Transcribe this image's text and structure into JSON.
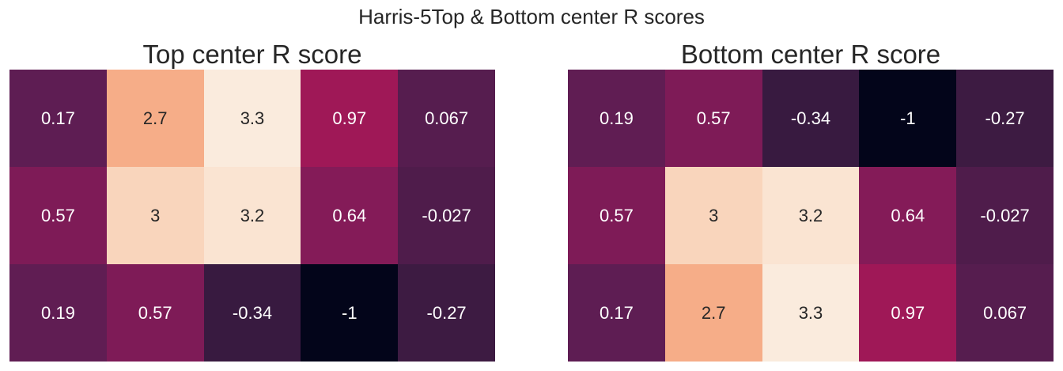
{
  "figure": {
    "suptitle": "Harris-5Top & Bottom center R scores"
  },
  "chart_data": [
    {
      "type": "heatmap",
      "title": "Top center R score",
      "vmin": -1,
      "vmax": 3.3,
      "colormap": "rocket",
      "colorbar": false,
      "values": [
        [
          0.17,
          2.7,
          3.3,
          0.97,
          0.067
        ],
        [
          0.57,
          3,
          3.2,
          0.64,
          -0.027
        ],
        [
          0.19,
          0.57,
          -0.34,
          -1,
          -0.27
        ]
      ],
      "labels": [
        [
          "0.17",
          "2.7",
          "3.3",
          "0.97",
          "0.067"
        ],
        [
          "0.57",
          "3",
          "3.2",
          "0.64",
          "-0.027"
        ],
        [
          "0.19",
          "0.57",
          "-0.34",
          "-1",
          "-0.27"
        ]
      ]
    },
    {
      "type": "heatmap",
      "title": "Bottom center R score",
      "vmin": -1,
      "vmax": 3.3,
      "colormap": "rocket",
      "colorbar": false,
      "values": [
        [
          0.19,
          0.57,
          -0.34,
          -1,
          -0.27
        ],
        [
          0.57,
          3,
          3.2,
          0.64,
          -0.027
        ],
        [
          0.17,
          2.7,
          3.3,
          0.97,
          0.067
        ]
      ],
      "labels": [
        [
          "0.19",
          "0.57",
          "-0.34",
          "-1",
          "-0.27"
        ],
        [
          "0.57",
          "3",
          "3.2",
          "0.64",
          "-0.027"
        ],
        [
          "0.17",
          "2.7",
          "3.3",
          "0.97",
          "0.067"
        ]
      ]
    }
  ]
}
